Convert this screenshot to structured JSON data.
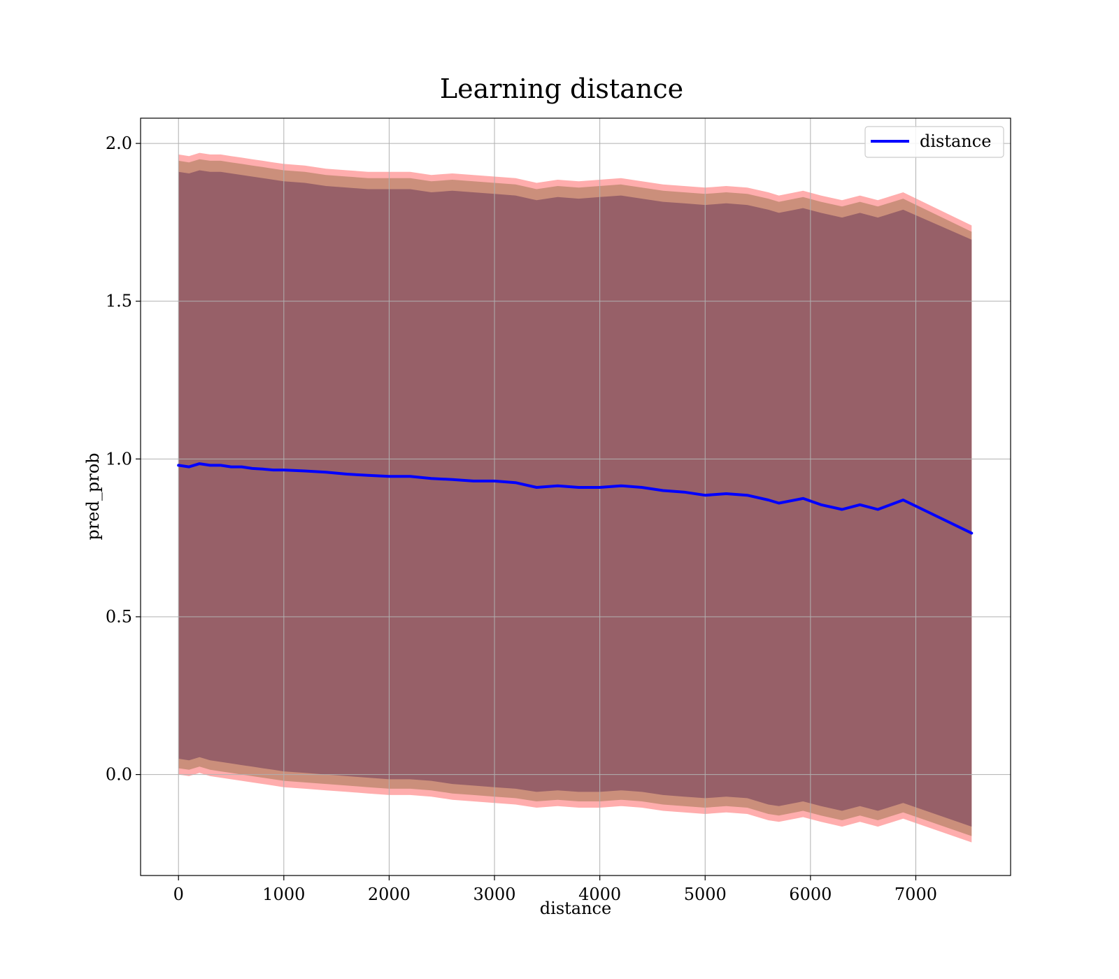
{
  "chart_data": {
    "type": "line",
    "title": "Learning distance",
    "xlabel": "distance",
    "ylabel": "pred_prob",
    "xlim": [
      -360,
      7900
    ],
    "ylim": [
      -0.32,
      2.08
    ],
    "xticks": [
      0,
      1000,
      2000,
      3000,
      4000,
      5000,
      6000,
      7000
    ],
    "xtick_labels": [
      "0",
      "1000",
      "2000",
      "3000",
      "4000",
      "5000",
      "6000",
      "7000"
    ],
    "yticks": [
      0.0,
      0.5,
      1.0,
      1.5,
      2.0
    ],
    "ytick_labels": [
      "0.0",
      "0.5",
      "1.0",
      "1.5",
      "2.0"
    ],
    "grid": true,
    "legend_position": "top-right",
    "series": [
      {
        "name": "distance",
        "color": "#0000ff",
        "x": [
          0,
          100,
          200,
          300,
          400,
          500,
          600,
          700,
          800,
          900,
          1000,
          1200,
          1400,
          1600,
          1800,
          2000,
          2200,
          2400,
          2600,
          2800,
          3000,
          3200,
          3400,
          3600,
          3800,
          4000,
          4200,
          4400,
          4600,
          4800,
          5000,
          5200,
          5400,
          5600,
          5700,
          5930,
          6100,
          6300,
          6470,
          6640,
          6880,
          7530
        ],
        "y": [
          0.98,
          0.975,
          0.985,
          0.98,
          0.98,
          0.975,
          0.975,
          0.97,
          0.968,
          0.965,
          0.965,
          0.962,
          0.958,
          0.952,
          0.948,
          0.945,
          0.945,
          0.938,
          0.935,
          0.93,
          0.93,
          0.925,
          0.91,
          0.915,
          0.91,
          0.91,
          0.915,
          0.91,
          0.9,
          0.895,
          0.885,
          0.89,
          0.885,
          0.87,
          0.86,
          0.875,
          0.855,
          0.84,
          0.855,
          0.84,
          0.87,
          0.765
        ]
      }
    ],
    "bands": [
      {
        "color": "#ff0000",
        "opacity": 0.32,
        "upper": [
          1.965,
          1.96,
          1.97,
          1.965,
          1.965,
          1.96,
          1.955,
          1.95,
          1.945,
          1.94,
          1.935,
          1.93,
          1.92,
          1.915,
          1.91,
          1.91,
          1.91,
          1.9,
          1.905,
          1.9,
          1.895,
          1.89,
          1.875,
          1.885,
          1.88,
          1.885,
          1.89,
          1.88,
          1.87,
          1.865,
          1.86,
          1.865,
          1.86,
          1.845,
          1.835,
          1.85,
          1.835,
          1.82,
          1.835,
          1.82,
          1.845,
          1.74
        ],
        "lower": [
          0.0,
          -0.005,
          0.005,
          -0.005,
          -0.01,
          -0.015,
          -0.02,
          -0.025,
          -0.03,
          -0.035,
          -0.04,
          -0.045,
          -0.05,
          -0.055,
          -0.06,
          -0.065,
          -0.065,
          -0.07,
          -0.08,
          -0.085,
          -0.09,
          -0.095,
          -0.105,
          -0.1,
          -0.105,
          -0.105,
          -0.1,
          -0.105,
          -0.115,
          -0.12,
          -0.125,
          -0.12,
          -0.125,
          -0.145,
          -0.15,
          -0.135,
          -0.15,
          -0.165,
          -0.15,
          -0.165,
          -0.14,
          -0.215
        ]
      },
      {
        "color": "#8b6a3e",
        "opacity": 0.45,
        "upper": [
          1.945,
          1.94,
          1.95,
          1.945,
          1.945,
          1.94,
          1.935,
          1.93,
          1.925,
          1.92,
          1.915,
          1.91,
          1.9,
          1.895,
          1.89,
          1.89,
          1.89,
          1.88,
          1.885,
          1.88,
          1.875,
          1.87,
          1.855,
          1.865,
          1.86,
          1.865,
          1.87,
          1.86,
          1.85,
          1.845,
          1.84,
          1.845,
          1.84,
          1.825,
          1.815,
          1.83,
          1.815,
          1.8,
          1.815,
          1.8,
          1.825,
          1.72
        ],
        "lower": [
          0.02,
          0.015,
          0.025,
          0.015,
          0.01,
          0.005,
          0.0,
          -0.005,
          -0.01,
          -0.015,
          -0.02,
          -0.025,
          -0.03,
          -0.035,
          -0.04,
          -0.045,
          -0.045,
          -0.05,
          -0.06,
          -0.065,
          -0.07,
          -0.075,
          -0.085,
          -0.08,
          -0.085,
          -0.085,
          -0.08,
          -0.085,
          -0.095,
          -0.1,
          -0.105,
          -0.1,
          -0.105,
          -0.125,
          -0.13,
          -0.115,
          -0.13,
          -0.145,
          -0.13,
          -0.145,
          -0.12,
          -0.195
        ]
      },
      {
        "color": "#6e3a5a",
        "opacity": 0.55,
        "upper": [
          1.91,
          1.905,
          1.915,
          1.91,
          1.91,
          1.905,
          1.9,
          1.895,
          1.89,
          1.885,
          1.88,
          1.875,
          1.865,
          1.86,
          1.855,
          1.855,
          1.855,
          1.845,
          1.85,
          1.845,
          1.84,
          1.835,
          1.82,
          1.83,
          1.825,
          1.83,
          1.835,
          1.825,
          1.815,
          1.81,
          1.805,
          1.81,
          1.805,
          1.79,
          1.78,
          1.795,
          1.78,
          1.765,
          1.78,
          1.765,
          1.79,
          1.695
        ],
        "lower": [
          0.05,
          0.045,
          0.055,
          0.045,
          0.04,
          0.035,
          0.03,
          0.025,
          0.02,
          0.015,
          0.01,
          0.005,
          0.0,
          -0.005,
          -0.01,
          -0.015,
          -0.015,
          -0.02,
          -0.03,
          -0.035,
          -0.04,
          -0.045,
          -0.055,
          -0.05,
          -0.055,
          -0.055,
          -0.05,
          -0.055,
          -0.065,
          -0.07,
          -0.075,
          -0.07,
          -0.075,
          -0.095,
          -0.1,
          -0.085,
          -0.1,
          -0.115,
          -0.1,
          -0.115,
          -0.09,
          -0.165
        ]
      }
    ]
  },
  "colors": {
    "grid": "#b0b0b0",
    "frame": "#000000",
    "legend_border": "#cccccc"
  }
}
